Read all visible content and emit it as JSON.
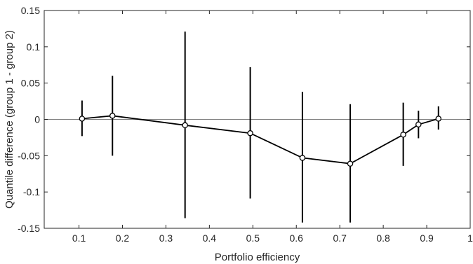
{
  "chart_data": {
    "type": "line",
    "title": "",
    "xlabel": "Portfolio efficiency",
    "ylabel": "Quantile difference (group 1 - group 2)",
    "xlim": [
      0.02,
      1.0
    ],
    "ylim": [
      -0.15,
      0.15
    ],
    "xticks": [
      0.1,
      0.2,
      0.3,
      0.4,
      0.5,
      0.6,
      0.7,
      0.8,
      0.9,
      1
    ],
    "xtick_labels": [
      "0.1",
      "0.2",
      "0.3",
      "0.4",
      "0.5",
      "0.6",
      "0.7",
      "0.8",
      "0.9",
      "1"
    ],
    "yticks": [
      -0.15,
      -0.1,
      -0.05,
      0,
      0.05,
      0.1,
      0.15
    ],
    "ytick_labels": [
      "-0.15",
      "-0.1",
      "-0.05",
      "0",
      "0.05",
      "0.1",
      "0.15"
    ],
    "reference_line_y": 0,
    "grid": false,
    "colors": {
      "line": "#000000",
      "marker_fill": "#ffffff",
      "reference": "#808080",
      "axes": "#262626"
    },
    "series": [
      {
        "x": [
          0.107,
          0.177,
          0.344,
          0.494,
          0.614,
          0.724,
          0.846,
          0.881,
          0.927
        ],
        "y": [
          0.001,
          0.005,
          -0.008,
          -0.019,
          -0.053,
          -0.061,
          -0.021,
          -0.007,
          0.001
        ],
        "lower": [
          -0.023,
          -0.05,
          -0.136,
          -0.109,
          -0.142,
          -0.142,
          -0.064,
          -0.026,
          -0.014
        ],
        "upper": [
          0.026,
          0.06,
          0.121,
          0.072,
          0.038,
          0.021,
          0.023,
          0.012,
          0.018
        ]
      }
    ]
  }
}
